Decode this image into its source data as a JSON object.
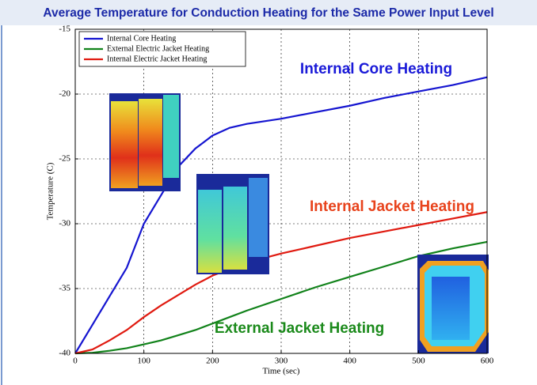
{
  "chart_data": {
    "type": "line",
    "title": "Average Temperature for Conduction Heating for the Same Power Input Level",
    "xlabel": "Time (sec)",
    "ylabel": "Temperature (C)",
    "x": [
      0,
      25,
      50,
      75,
      100,
      125,
      150,
      175,
      200,
      225,
      250,
      300,
      350,
      400,
      450,
      500,
      550,
      600
    ],
    "series": [
      {
        "name": "Internal Core Heating",
        "color": "#1515d0",
        "values": [
          -40,
          -37.8,
          -35.6,
          -33.4,
          -30.0,
          -27.8,
          -25.6,
          -24.2,
          -23.2,
          -22.6,
          -22.3,
          -21.9,
          -21.4,
          -20.9,
          -20.3,
          -19.8,
          -19.3,
          -18.7
        ]
      },
      {
        "name": "External Electric Jacket Heating",
        "color": "#11821a",
        "values": [
          -40,
          -39.95,
          -39.8,
          -39.6,
          -39.3,
          -39.0,
          -38.6,
          -38.2,
          -37.7,
          -37.2,
          -36.7,
          -35.8,
          -34.9,
          -34.1,
          -33.3,
          -32.5,
          -31.9,
          -31.4
        ]
      },
      {
        "name": "Internal Electric Jacket Heating",
        "color": "#e01a10",
        "values": [
          -40,
          -39.7,
          -39.0,
          -38.2,
          -37.2,
          -36.3,
          -35.5,
          -34.7,
          -34.0,
          -33.5,
          -33.0,
          -32.3,
          -31.7,
          -31.1,
          -30.6,
          -30.1,
          -29.6,
          -29.1
        ]
      }
    ],
    "xlim": [
      0,
      600
    ],
    "ylim": [
      -40,
      -15
    ],
    "xticks": [
      0,
      100,
      200,
      300,
      400,
      500,
      600
    ],
    "yticks": [
      -40,
      -35,
      -30,
      -25,
      -20,
      -15
    ],
    "grid": true,
    "legend": "upper left",
    "annotations": [
      {
        "text": "Internal Core Heating",
        "color": "#1a1ad8"
      },
      {
        "text": "Internal Jacket Heating",
        "color": "#e8431c"
      },
      {
        "text": "External Jacket Heating",
        "color": "#1b8a1b"
      }
    ]
  }
}
